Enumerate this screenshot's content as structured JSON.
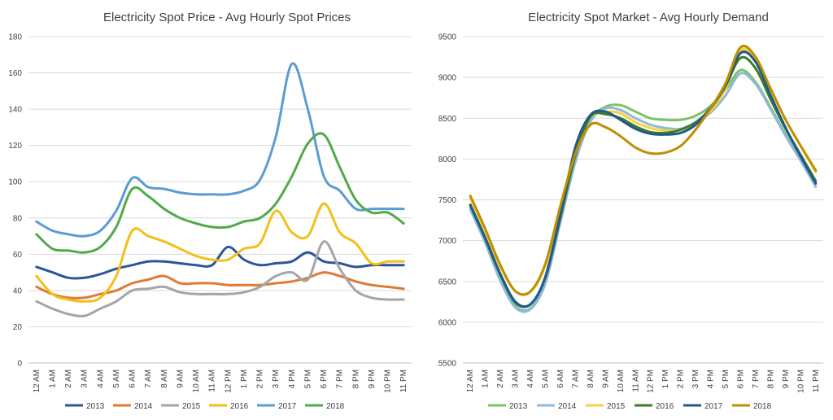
{
  "chart_data": [
    {
      "type": "line",
      "title": "Electricity Spot Price  - Avg Hourly Spot Prices",
      "xlabel": "",
      "ylabel": "",
      "ylim": [
        0,
        180
      ],
      "yticks": [
        0,
        20,
        40,
        60,
        80,
        100,
        120,
        140,
        160,
        180
      ],
      "grid": true,
      "legend": "bottom",
      "categories": [
        "12 AM",
        "1 AM",
        "2 AM",
        "3 AM",
        "4 AM",
        "5 AM",
        "6 AM",
        "7 AM",
        "8 AM",
        "9 AM",
        "10 AM",
        "11 AM",
        "12 PM",
        "1 PM",
        "2 PM",
        "3 PM",
        "4 PM",
        "5 PM",
        "6 PM",
        "7 PM",
        "8 PM",
        "9 PM",
        "10 PM",
        "11 PM"
      ],
      "series": [
        {
          "name": "2013",
          "color": "#2e5597",
          "values": [
            53,
            50,
            47,
            47,
            49,
            52,
            54,
            56,
            56,
            55,
            54,
            54,
            64,
            57,
            54,
            55,
            56,
            61,
            56,
            55,
            53,
            54,
            54,
            54
          ]
        },
        {
          "name": "2014",
          "color": "#e07a34",
          "values": [
            42,
            38,
            36,
            36,
            38,
            40,
            44,
            46,
            48,
            44,
            44,
            44,
            43,
            43,
            43,
            44,
            45,
            47,
            50,
            48,
            45,
            43,
            42,
            41
          ]
        },
        {
          "name": "2015",
          "color": "#a5a5a5",
          "values": [
            34,
            30,
            27,
            26,
            30,
            34,
            40,
            41,
            42,
            39,
            38,
            38,
            38,
            39,
            42,
            48,
            50,
            46,
            67,
            52,
            40,
            36,
            35,
            35
          ]
        },
        {
          "name": "2016",
          "color": "#f2c019",
          "values": [
            48,
            38,
            35,
            34,
            36,
            48,
            73,
            70,
            67,
            63,
            59,
            57,
            57,
            63,
            66,
            84,
            72,
            70,
            88,
            72,
            66,
            55,
            56,
            56
          ]
        },
        {
          "name": "2017",
          "color": "#5b9bd5",
          "values": [
            78,
            73,
            71,
            70,
            73,
            84,
            102,
            97,
            96,
            94,
            93,
            93,
            93,
            95,
            101,
            125,
            165,
            140,
            103,
            95,
            85,
            85,
            85,
            85
          ]
        },
        {
          "name": "2018",
          "color": "#4faa49",
          "values": [
            71,
            63,
            62,
            61,
            64,
            75,
            96,
            92,
            85,
            80,
            77,
            75,
            75,
            78,
            80,
            88,
            103,
            121,
            126,
            108,
            90,
            83,
            83,
            77
          ]
        }
      ]
    },
    {
      "type": "line",
      "title": "Electricity Spot Market  -  Avg Hourly Demand",
      "xlabel": "",
      "ylabel": "",
      "ylim": [
        5500,
        9500
      ],
      "yticks": [
        5500,
        6000,
        6500,
        7000,
        7500,
        8000,
        8500,
        9000,
        9500
      ],
      "grid": true,
      "legend": "bottom",
      "categories": [
        "12 AM",
        "1 AM",
        "2 AM",
        "3 AM",
        "4 AM",
        "5 AM",
        "6 AM",
        "7 AM",
        "8 AM",
        "9 AM",
        "10 AM",
        "11 AM",
        "12 PM",
        "1 PM",
        "2 PM",
        "3 PM",
        "4 PM",
        "5 PM",
        "6 PM",
        "7 PM",
        "8 PM",
        "9 PM",
        "10 PM",
        "11 PM"
      ],
      "series": [
        {
          "name": "2013",
          "color": "#7cc368",
          "values": [
            7400,
            6990,
            6540,
            6200,
            6170,
            6500,
            7260,
            8000,
            8480,
            8640,
            8660,
            8580,
            8500,
            8480,
            8480,
            8530,
            8650,
            8850,
            9090,
            8940,
            8630,
            8300,
            7990,
            7700
          ]
        },
        {
          "name": "2014",
          "color": "#8fb8d9",
          "values": [
            7380,
            6970,
            6510,
            6180,
            6160,
            6480,
            7230,
            7970,
            8460,
            8620,
            8600,
            8500,
            8420,
            8380,
            8370,
            8450,
            8570,
            8780,
            9050,
            8920,
            8610,
            8280,
            7980,
            7660
          ]
        },
        {
          "name": "2015",
          "color": "#f5d33f",
          "values": [
            7520,
            7110,
            6680,
            6380,
            6370,
            6700,
            7400,
            8120,
            8510,
            8580,
            8560,
            8450,
            8380,
            8350,
            8360,
            8440,
            8590,
            8860,
            9330,
            9230,
            8860,
            8480,
            8160,
            7840
          ]
        },
        {
          "name": "2016",
          "color": "#3c7d22",
          "values": [
            7430,
            7020,
            6580,
            6240,
            6220,
            6550,
            7290,
            8050,
            8520,
            8550,
            8500,
            8400,
            8330,
            8320,
            8360,
            8450,
            8620,
            8900,
            9240,
            9110,
            8730,
            8370,
            8050,
            7730
          ]
        },
        {
          "name": "2017",
          "color": "#1f5a8c",
          "values": [
            7440,
            7030,
            6590,
            6250,
            6220,
            6560,
            7320,
            8150,
            8540,
            8580,
            8480,
            8370,
            8310,
            8300,
            8320,
            8420,
            8630,
            8900,
            9300,
            9190,
            8780,
            8380,
            8030,
            7700
          ]
        },
        {
          "name": "2018",
          "color": "#bf8f00",
          "values": [
            7550,
            7140,
            6700,
            6380,
            6380,
            6720,
            7430,
            8070,
            8420,
            8390,
            8280,
            8140,
            8070,
            8080,
            8160,
            8360,
            8620,
            8930,
            9370,
            9250,
            8860,
            8480,
            8160,
            7860
          ]
        }
      ]
    }
  ]
}
